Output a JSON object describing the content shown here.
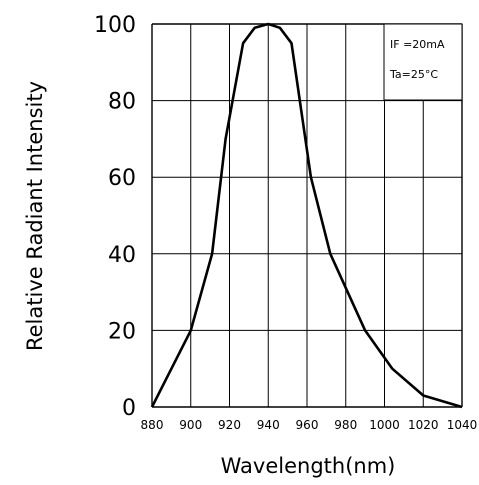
{
  "chart_data": {
    "type": "line",
    "xlabel": "Wavelength(nm)",
    "ylabel": "Relative Radiant Intensity",
    "xlim": [
      880,
      1040
    ],
    "ylim": [
      0,
      100
    ],
    "x_ticks": [
      880,
      900,
      920,
      940,
      960,
      980,
      1000,
      1020,
      1040
    ],
    "y_ticks": [
      0,
      20,
      40,
      60,
      80,
      100
    ],
    "grid": true,
    "annotations": [
      "IF =20mA",
      "Ta=25°C"
    ],
    "series": [
      {
        "x": [
          880,
          900,
          911,
          918,
          927,
          933,
          940,
          946,
          952,
          962,
          972,
          990,
          1004,
          1020,
          1040
        ],
        "y": [
          0,
          20,
          40,
          70,
          95,
          99,
          100,
          99,
          95,
          60,
          40,
          20,
          10,
          3,
          0
        ]
      }
    ]
  }
}
